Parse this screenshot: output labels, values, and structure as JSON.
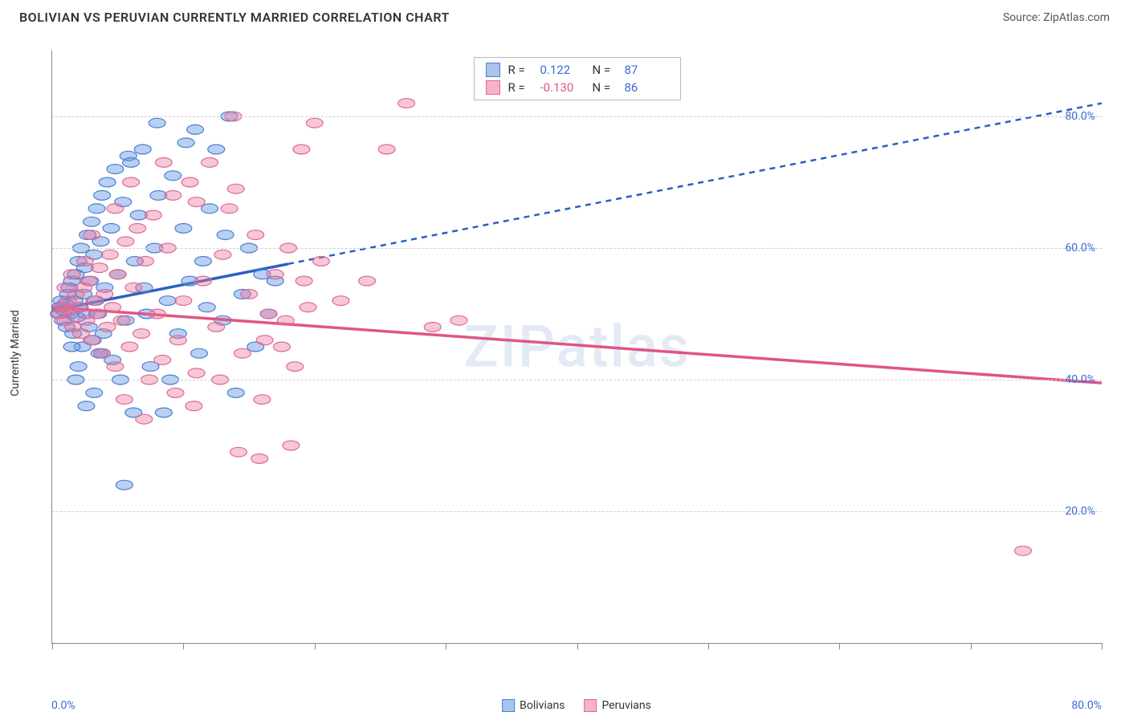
{
  "header": {
    "title": "BOLIVIAN VS PERUVIAN CURRENTLY MARRIED CORRELATION CHART",
    "source_label": "Source:",
    "source_name": "ZipAtlas.com"
  },
  "chart": {
    "type": "scatter",
    "ylabel": "Currently Married",
    "xlim": [
      0,
      80
    ],
    "ylim": [
      0,
      90
    ],
    "xtick_positions": [
      0,
      10,
      20,
      30,
      40,
      50,
      60,
      70,
      80
    ],
    "xaxis_min_label": "0.0%",
    "xaxis_max_label": "80.0%",
    "yticks": [
      {
        "value": 20,
        "label": "20.0%"
      },
      {
        "value": 40,
        "label": "40.0%"
      },
      {
        "value": 60,
        "label": "60.0%"
      },
      {
        "value": 80,
        "label": "80.0%"
      }
    ],
    "background_color": "#ffffff",
    "grid_color": "#d0d0d0",
    "axis_color": "#888888",
    "tick_label_color": "#3b6bd6",
    "watermark_text": "ZIPatlas",
    "series": [
      {
        "name": "Bolivians",
        "fill_color": "rgba(99, 150, 226, 0.45)",
        "stroke_color": "#4a7fd0",
        "swatch_fill": "#a6c4ed",
        "swatch_stroke": "#4a7fd0",
        "r_label": "R =",
        "r_value": "0.122",
        "r_value_color": "#3b6bd6",
        "n_label": "N =",
        "n_value": "87",
        "n_value_color": "#3b6bd6",
        "trend": {
          "x1": 0,
          "y1": 50.5,
          "x2": 80,
          "y2": 82,
          "solid_until_x": 18,
          "color": "#2b5fc7",
          "width": 2.5,
          "dash": "7,6"
        },
        "points": [
          [
            0.5,
            50
          ],
          [
            0.6,
            51
          ],
          [
            0.7,
            52
          ],
          [
            0.8,
            49
          ],
          [
            0.9,
            50.5
          ],
          [
            1.0,
            51.5
          ],
          [
            1.1,
            48
          ],
          [
            1.2,
            53
          ],
          [
            1.3,
            54
          ],
          [
            1.4,
            50
          ],
          [
            1.5,
            55
          ],
          [
            1.6,
            47
          ],
          [
            1.7,
            52
          ],
          [
            1.8,
            56
          ],
          [
            1.9,
            49.5
          ],
          [
            2.0,
            58
          ],
          [
            2.1,
            51
          ],
          [
            2.2,
            60
          ],
          [
            2.3,
            45
          ],
          [
            2.4,
            53
          ],
          [
            2.5,
            57
          ],
          [
            2.6,
            50
          ],
          [
            2.7,
            62
          ],
          [
            2.8,
            48
          ],
          [
            2.9,
            55
          ],
          [
            3.0,
            64
          ],
          [
            3.1,
            46
          ],
          [
            3.2,
            59
          ],
          [
            3.3,
            52
          ],
          [
            3.4,
            66
          ],
          [
            3.5,
            50
          ],
          [
            3.6,
            44
          ],
          [
            3.7,
            61
          ],
          [
            3.8,
            68
          ],
          [
            3.9,
            47
          ],
          [
            4.0,
            54
          ],
          [
            4.2,
            70
          ],
          [
            4.5,
            63
          ],
          [
            4.8,
            72
          ],
          [
            5.0,
            56
          ],
          [
            5.2,
            40
          ],
          [
            5.4,
            67
          ],
          [
            5.6,
            49
          ],
          [
            5.8,
            74
          ],
          [
            6.0,
            73
          ],
          [
            6.3,
            58
          ],
          [
            6.6,
            65
          ],
          [
            6.9,
            75
          ],
          [
            7.2,
            50
          ],
          [
            7.5,
            42
          ],
          [
            7.8,
            60
          ],
          [
            8.1,
            68
          ],
          [
            8.5,
            35
          ],
          [
            8.8,
            52
          ],
          [
            9.2,
            71
          ],
          [
            9.6,
            47
          ],
          [
            10.0,
            63
          ],
          [
            10.5,
            55
          ],
          [
            10.9,
            78
          ],
          [
            11.2,
            44
          ],
          [
            11.5,
            58
          ],
          [
            12.0,
            66
          ],
          [
            12.5,
            75
          ],
          [
            13.0,
            49
          ],
          [
            13.5,
            80
          ],
          [
            14.0,
            38
          ],
          [
            14.5,
            53
          ],
          [
            15.0,
            60
          ],
          [
            15.5,
            45
          ],
          [
            16.0,
            56
          ],
          [
            5.5,
            24
          ],
          [
            2.0,
            42
          ],
          [
            3.2,
            38
          ],
          [
            1.5,
            45
          ],
          [
            16.5,
            50
          ],
          [
            17.0,
            55
          ],
          [
            10.2,
            76
          ],
          [
            8.0,
            79
          ],
          [
            4.6,
            43
          ],
          [
            6.2,
            35
          ],
          [
            9.0,
            40
          ],
          [
            11.8,
            51
          ],
          [
            13.2,
            62
          ],
          [
            7.0,
            54
          ],
          [
            3.8,
            44
          ],
          [
            2.6,
            36
          ],
          [
            1.8,
            40
          ]
        ]
      },
      {
        "name": "Peruvians",
        "fill_color": "rgba(232, 115, 155, 0.4)",
        "stroke_color": "#e06995",
        "swatch_fill": "#f4b3ca",
        "swatch_stroke": "#e06995",
        "r_label": "R =",
        "r_value": "-0.130",
        "r_value_color": "#e05585",
        "n_label": "N =",
        "n_value": "86",
        "n_value_color": "#3b6bd6",
        "trend": {
          "x1": 0,
          "y1": 51,
          "x2": 80,
          "y2": 39.5,
          "solid_until_x": 80,
          "color": "#e05585",
          "width": 2.5,
          "dash": "none"
        },
        "points": [
          [
            0.6,
            50
          ],
          [
            0.8,
            51
          ],
          [
            1.0,
            49
          ],
          [
            1.2,
            52
          ],
          [
            1.4,
            50.5
          ],
          [
            1.6,
            48
          ],
          [
            1.8,
            53
          ],
          [
            2.0,
            51
          ],
          [
            2.2,
            47
          ],
          [
            2.4,
            54
          ],
          [
            2.6,
            49
          ],
          [
            2.8,
            55
          ],
          [
            3.0,
            46
          ],
          [
            3.2,
            52
          ],
          [
            3.4,
            50
          ],
          [
            3.6,
            57
          ],
          [
            3.8,
            44
          ],
          [
            4.0,
            53
          ],
          [
            4.2,
            48
          ],
          [
            4.4,
            59
          ],
          [
            4.6,
            51
          ],
          [
            4.8,
            42
          ],
          [
            5.0,
            56
          ],
          [
            5.3,
            49
          ],
          [
            5.6,
            61
          ],
          [
            5.9,
            45
          ],
          [
            6.2,
            54
          ],
          [
            6.5,
            63
          ],
          [
            6.8,
            47
          ],
          [
            7.1,
            58
          ],
          [
            7.4,
            40
          ],
          [
            7.7,
            65
          ],
          [
            8.0,
            50
          ],
          [
            8.4,
            43
          ],
          [
            8.8,
            60
          ],
          [
            9.2,
            68
          ],
          [
            9.6,
            46
          ],
          [
            10.0,
            52
          ],
          [
            10.5,
            70
          ],
          [
            11.0,
            41
          ],
          [
            11.5,
            55
          ],
          [
            12.0,
            73
          ],
          [
            12.5,
            48
          ],
          [
            13.0,
            59
          ],
          [
            13.5,
            66
          ],
          [
            14.0,
            69
          ],
          [
            14.5,
            44
          ],
          [
            15.0,
            53
          ],
          [
            15.5,
            62
          ],
          [
            16.0,
            37
          ],
          [
            16.5,
            50
          ],
          [
            17.0,
            56
          ],
          [
            17.5,
            45
          ],
          [
            18.0,
            60
          ],
          [
            18.5,
            42
          ],
          [
            19.0,
            75
          ],
          [
            19.5,
            51
          ],
          [
            20.0,
            79
          ],
          [
            13.8,
            80
          ],
          [
            27.0,
            82
          ],
          [
            25.5,
            75
          ],
          [
            29.0,
            48
          ],
          [
            31.0,
            49
          ],
          [
            14.2,
            29
          ],
          [
            15.8,
            28
          ],
          [
            18.2,
            30
          ],
          [
            10.8,
            36
          ],
          [
            9.4,
            38
          ],
          [
            7.0,
            34
          ],
          [
            5.5,
            37
          ],
          [
            74.0,
            14
          ],
          [
            3.0,
            62
          ],
          [
            4.8,
            66
          ],
          [
            6.0,
            70
          ],
          [
            8.5,
            73
          ],
          [
            11.0,
            67
          ],
          [
            2.5,
            58
          ],
          [
            1.5,
            56
          ],
          [
            1.0,
            54
          ],
          [
            12.8,
            40
          ],
          [
            16.2,
            46
          ],
          [
            17.8,
            49
          ],
          [
            19.2,
            55
          ],
          [
            20.5,
            58
          ],
          [
            22.0,
            52
          ],
          [
            24.0,
            55
          ]
        ]
      }
    ]
  },
  "bottom_legend": {
    "items": [
      {
        "label": "Bolivians",
        "fill": "#a6c4ed",
        "stroke": "#4a7fd0"
      },
      {
        "label": "Peruvians",
        "fill": "#f4b3ca",
        "stroke": "#e06995"
      }
    ]
  }
}
